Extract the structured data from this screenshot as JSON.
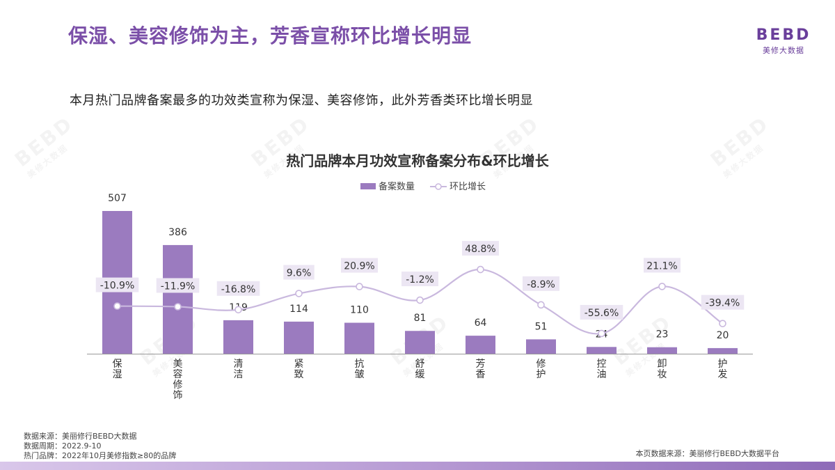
{
  "header": {
    "title": "保湿、美容修饰为主，芳香宣称环比增长明显",
    "subtitle": "本月热门品牌备案最多的功效类宣称为保湿、美容修饰，此外芳香类环比增长明显"
  },
  "logo": {
    "mark": "BEBD",
    "sub": "美修大数据"
  },
  "watermark": {
    "mark": "BEBD",
    "sub": "美修大数据"
  },
  "colors": {
    "bar": "#9b7bbf",
    "line": "#c9b8de",
    "label_bg": "#ece6f3",
    "axis": "#999999",
    "title_purple": "#7b4fa8"
  },
  "chart_data": {
    "type": "bar",
    "title": "热门品牌本月功效宣称备案分布&环比增长",
    "categories": [
      "保湿",
      "美容修饰",
      "清洁",
      "紧致",
      "抗皱",
      "舒缓",
      "芳香",
      "修护",
      "控油",
      "卸妆",
      "护发"
    ],
    "series": [
      {
        "name": "备案数量",
        "type": "bar",
        "values": [
          507,
          386,
          119,
          114,
          110,
          81,
          64,
          51,
          24,
          23,
          20
        ]
      },
      {
        "name": "环比增长",
        "type": "line",
        "values": [
          -10.9,
          -11.9,
          -16.8,
          9.6,
          20.9,
          -1.2,
          48.8,
          -8.9,
          -55.6,
          21.1,
          -39.4
        ]
      }
    ],
    "growth_labels": [
      "-10.9%",
      "-11.9%",
      "-16.8%",
      "9.6%",
      "20.9%",
      "-1.2%",
      "48.8%",
      "-8.9%",
      "-55.6%",
      "21.1%",
      "-39.4%"
    ],
    "legend_placement": "top-center",
    "grid": false
  },
  "footer": {
    "notes": [
      "数据来源：美丽修行BEBD大数据",
      "数据周期：2022.9-10",
      "热门品牌：2022年10月美修指数≥80的品牌"
    ],
    "source": "本页数据来源：美丽修行BEBD大数据平台"
  }
}
